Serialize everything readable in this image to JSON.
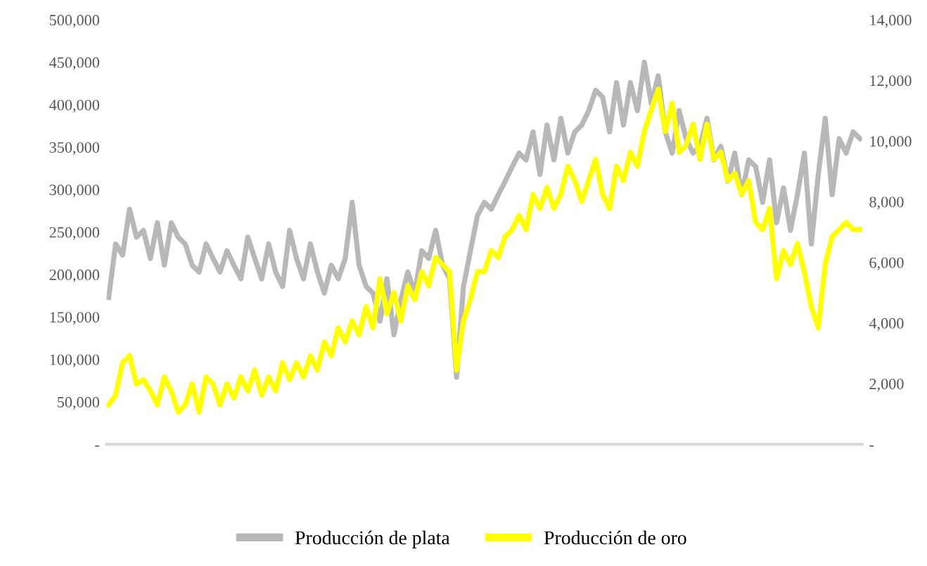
{
  "chart_data": {
    "type": "line",
    "tick_labels": "y",
    "legend": "bottom",
    "grid": false,
    "line_style": "solid",
    "marker": "none",
    "categories": [
      null,
      null,
      null,
      null,
      null,
      null,
      null,
      null,
      null,
      null,
      null,
      null,
      null,
      null,
      null,
      null,
      null,
      null,
      null,
      null,
      null,
      null,
      null,
      null,
      null,
      null,
      null,
      null,
      null,
      null,
      null,
      null,
      null,
      null,
      null,
      null,
      null,
      null,
      null,
      null,
      null,
      null,
      null,
      null,
      null,
      null,
      null,
      null,
      null,
      null,
      null,
      null,
      null,
      null,
      null,
      null,
      null,
      null,
      null,
      null,
      null,
      null,
      null,
      null,
      null,
      null,
      null,
      null,
      null,
      null,
      null,
      null,
      null,
      null,
      null,
      null,
      null,
      null,
      null,
      null,
      null,
      null,
      null,
      null,
      null,
      null,
      null,
      null,
      null,
      null,
      null,
      null,
      null,
      null,
      null,
      null,
      null,
      null,
      null,
      null,
      null,
      null,
      null,
      null,
      null,
      null,
      null,
      null,
      null
    ],
    "ylim": [
      0,
      500000
    ],
    "yticks": [
      {
        "value": 0,
        "label": "-"
      },
      {
        "value": 50000,
        "label": "50,000"
      },
      {
        "value": 100000,
        "label": "100,000"
      },
      {
        "value": 150000,
        "label": "150,000"
      },
      {
        "value": 200000,
        "label": "200,000"
      },
      {
        "value": 250000,
        "label": "250,000"
      },
      {
        "value": 300000,
        "label": "300,000"
      },
      {
        "value": 350000,
        "label": "350,000"
      },
      {
        "value": 400000,
        "label": "400,000"
      },
      {
        "value": 450000,
        "label": "450,000"
      },
      {
        "value": 500000,
        "label": "500,000"
      }
    ],
    "y2lim": [
      0,
      14000
    ],
    "y2ticks": [
      {
        "value": 0,
        "label": "-"
      },
      {
        "value": 2000,
        "label": "2,000"
      },
      {
        "value": 4000,
        "label": "4,000"
      },
      {
        "value": 6000,
        "label": "6,000"
      },
      {
        "value": 8000,
        "label": "8,000"
      },
      {
        "value": 10000,
        "label": "10,000"
      },
      {
        "value": 12000,
        "label": "12,000"
      },
      {
        "value": 14000,
        "label": "14,000"
      }
    ],
    "series": [
      {
        "name": "Producción de plata",
        "color": "#b8b8b8",
        "values": [
          173000,
          236000,
          223000,
          277000,
          244000,
          252000,
          219000,
          261000,
          211000,
          261000,
          244000,
          236000,
          211000,
          203000,
          236000,
          219000,
          203000,
          228000,
          211000,
          195000,
          244000,
          219000,
          195000,
          236000,
          203000,
          186000,
          252000,
          219000,
          195000,
          236000,
          203000,
          178000,
          211000,
          195000,
          219000,
          285000,
          211000,
          186000,
          178000,
          145000,
          195000,
          129000,
          170000,
          203000,
          178000,
          228000,
          219000,
          252000,
          211000,
          195000,
          79000,
          186000,
          228000,
          269000,
          285000,
          277000,
          294000,
          310000,
          327000,
          343000,
          335000,
          368000,
          318000,
          376000,
          335000,
          384000,
          343000,
          368000,
          376000,
          393000,
          417000,
          409000,
          368000,
          426000,
          376000,
          426000,
          393000,
          450000,
          401000,
          434000,
          368000,
          343000,
          393000,
          360000,
          343000,
          351000,
          384000,
          335000,
          351000,
          310000,
          343000,
          294000,
          335000,
          327000,
          285000,
          335000,
          261000,
          302000,
          252000,
          294000,
          343000,
          236000,
          318000,
          384000,
          294000,
          360000,
          343000,
          368000,
          360000
        ]
      },
      {
        "name": "Producción de oro",
        "color": "#ffff00",
        "axis": "y2",
        "values": [
          1300,
          1620,
          2690,
          2920,
          1990,
          2130,
          1760,
          1300,
          2220,
          1760,
          1060,
          1300,
          1990,
          1060,
          2220,
          1990,
          1300,
          1990,
          1530,
          2220,
          1760,
          2450,
          1620,
          2220,
          1760,
          2690,
          2130,
          2690,
          2220,
          2920,
          2450,
          3380,
          2920,
          3840,
          3380,
          4070,
          3610,
          4540,
          3840,
          5460,
          4310,
          5000,
          4070,
          5230,
          4770,
          5690,
          5230,
          6160,
          5930,
          5690,
          2450,
          4070,
          4770,
          5690,
          5690,
          6390,
          6160,
          6850,
          7080,
          7550,
          7080,
          8240,
          7780,
          8470,
          7780,
          8240,
          9170,
          8700,
          8010,
          8700,
          9400,
          8240,
          7780,
          9170,
          8700,
          9630,
          9170,
          10320,
          11020,
          11710,
          10320,
          11250,
          9630,
          9860,
          10560,
          9400,
          10560,
          9400,
          9630,
          8700,
          8940,
          8240,
          8700,
          7320,
          7080,
          7780,
          5460,
          6390,
          5930,
          6620,
          5690,
          4540,
          3840,
          5930,
          6850,
          7080,
          7320,
          7080,
          7080
        ]
      }
    ]
  }
}
